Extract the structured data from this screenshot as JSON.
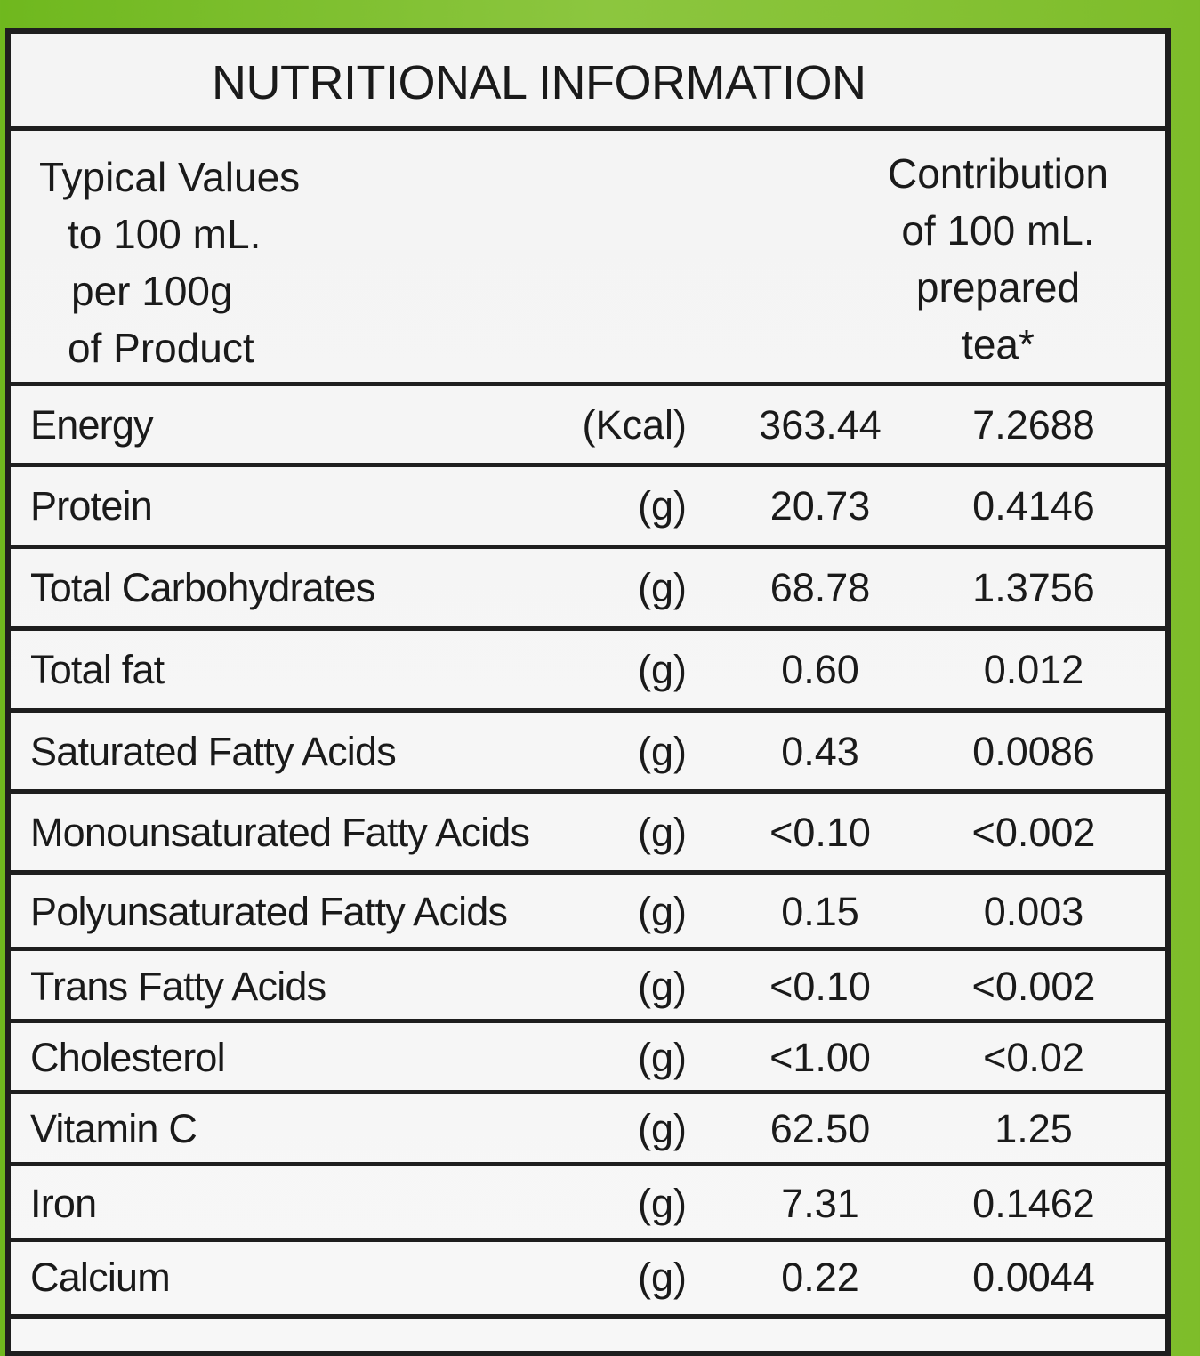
{
  "title": "NUTRITIONAL INFORMATION",
  "header": {
    "left": [
      "Typical Values",
      "to 100 mL.",
      "per 100g",
      "of Product"
    ],
    "right": [
      "Contribution",
      "of 100 mL.",
      "prepared",
      "tea*"
    ]
  },
  "rows": [
    {
      "name": "Energy",
      "unit": "(Kcal)",
      "per100g": "363.44",
      "per100ml": "7.2688"
    },
    {
      "name": "Protein",
      "unit": "(g)",
      "per100g": "20.73",
      "per100ml": "0.4146"
    },
    {
      "name": "Total Carbohydrates",
      "unit": "(g)",
      "per100g": "68.78",
      "per100ml": "1.3756"
    },
    {
      "name": "Total fat",
      "unit": "(g)",
      "per100g": "0.60",
      "per100ml": "0.012"
    },
    {
      "name": "Saturated Fatty Acids",
      "unit": "(g)",
      "per100g": "0.43",
      "per100ml": "0.0086"
    },
    {
      "name": "Monounsaturated Fatty Acids",
      "unit": "(g)",
      "per100g": "<0.10",
      "per100ml": "<0.002"
    },
    {
      "name": "Polyunsaturated Fatty Acids",
      "unit": "(g)",
      "per100g": "0.15",
      "per100ml": "0.003"
    },
    {
      "name": "Trans Fatty Acids",
      "unit": "(g)",
      "per100g": "<0.10",
      "per100ml": "<0.002"
    },
    {
      "name": "Cholesterol",
      "unit": "(g)",
      "per100g": "<1.00",
      "per100ml": "<0.02"
    },
    {
      "name": "Vitamin C",
      "unit": "(g)",
      "per100g": "62.50",
      "per100ml": "1.25"
    },
    {
      "name": "Iron",
      "unit": "(g)",
      "per100g": "7.31",
      "per100ml": "0.1462"
    },
    {
      "name": "Calcium",
      "unit": "(g)",
      "per100g": "0.22",
      "per100ml": "0.0044"
    }
  ]
}
